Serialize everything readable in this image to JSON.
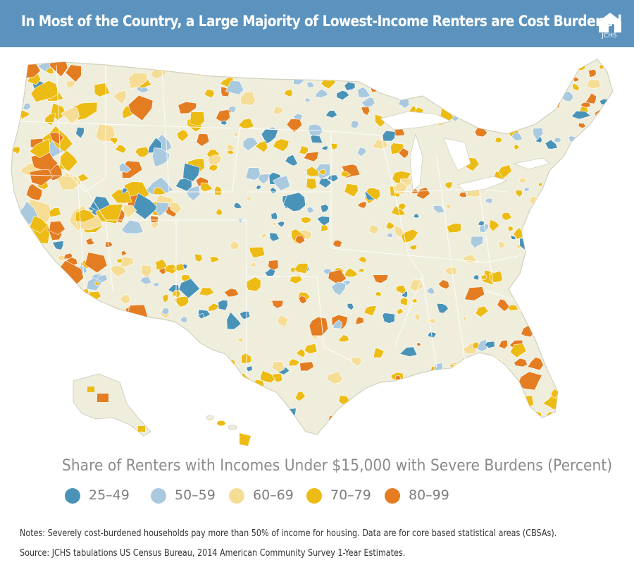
{
  "header": {
    "title": "In Most of the Country, a Large Majority of Lowest-Income Renters are Cost Burdened",
    "logo_text": "JCHS"
  },
  "map": {
    "base_color": "#efeedd",
    "border_color": "#d9d7c6",
    "water_color": "#ffffff"
  },
  "legend": {
    "title": "Share of Renters with Incomes Under $15,000 with Severe Burdens (Percent)",
    "items": [
      {
        "label": "25–49",
        "color": "#4a93b8"
      },
      {
        "label": "50–59",
        "color": "#a9c9df"
      },
      {
        "label": "60–69",
        "color": "#f6dd96"
      },
      {
        "label": "70–79",
        "color": "#edbc14"
      },
      {
        "label": "80–99",
        "color": "#e47c22"
      }
    ]
  },
  "notes": {
    "line1": "Notes: Severely cost-burdened households pay more than 50% of income for housing. Data are for core based statistical areas (CBSAs).",
    "line2": "Source: JCHS tabulations US Census Bureau, 2014 American Community Survey 1-Year Estimates."
  }
}
